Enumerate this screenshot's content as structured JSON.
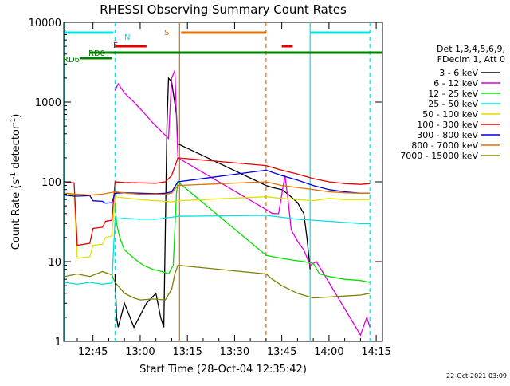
{
  "chart_data": {
    "type": "line",
    "title": "RHESSI Observing Summary Count Rates",
    "xlabel": "Start Time (28-Oct-04 12:35:42)",
    "ylabel_main": "Count Rate (s",
    "ylabel_sup1": "-1",
    "ylabel_mid": " detector",
    "ylabel_sup2": "-1",
    "ylabel_end": ")",
    "footer_date": "22-Oct-2021 03:09",
    "y_scale": "log",
    "ylim": [
      1,
      10000
    ],
    "xlim": [
      "12:35:42",
      "14:17"
    ],
    "x_ticks": [
      "12:45",
      "13:00",
      "13:15",
      "13:30",
      "13:45",
      "14:00",
      "14:15"
    ],
    "y_ticks": [
      "1",
      "10",
      "100",
      "1000",
      "10000"
    ],
    "legend_header": [
      "Det 1,3,4,5,6,9,",
      "FDecim 1, Att 0"
    ],
    "legend_position": "right",
    "series": [
      {
        "name": "3 - 6 keV",
        "color": "#000000",
        "x": [
          "12:52:00",
          "12:52:30",
          "12:53:00",
          "12:55:00",
          "12:58:00",
          "13:02:00",
          "13:05:00",
          "13:06:30",
          "13:07:30",
          "13:08:30",
          "13:09:00",
          "13:10:00",
          "13:11:30",
          "13:12:00",
          "13:40:00",
          "13:42:00",
          "13:45:00",
          "13:47:00",
          "13:50:00",
          "13:52:00",
          "13:53:00",
          "13:54:00"
        ],
        "y": [
          7,
          2,
          1.5,
          3,
          1.5,
          3,
          4,
          2,
          1.5,
          500,
          2000,
          1800,
          700,
          300,
          90,
          85,
          80,
          70,
          55,
          40,
          20,
          8
        ]
      },
      {
        "name": "6 - 12 keV",
        "color": "#e000e0",
        "x": [
          "12:52:00",
          "12:53:00",
          "12:55:00",
          "12:58:00",
          "13:01:00",
          "13:04:00",
          "13:07:00",
          "13:09:00",
          "13:10:00",
          "13:11:00",
          "13:12:00",
          "13:40:00",
          "13:42:00",
          "13:44:00",
          "13:46:00",
          "13:47:00",
          "13:48:00",
          "13:50:00",
          "13:52:00",
          "13:54:00",
          "13:56:00",
          "14:10:00",
          "14:12:00",
          "14:13:00"
        ],
        "y": [
          1400,
          1700,
          1300,
          1000,
          750,
          550,
          420,
          350,
          2000,
          2500,
          200,
          45,
          40,
          40,
          120,
          60,
          25,
          18,
          14,
          9,
          10,
          1.2,
          2,
          1.5
        ]
      },
      {
        "name": "12 - 25 keV",
        "color": "#00e000",
        "x": [
          "12:52:00",
          "12:52:30",
          "12:53:30",
          "12:55:00",
          "12:58:00",
          "13:01:00",
          "13:04:00",
          "13:07:00",
          "13:09:00",
          "13:10:30",
          "13:11:30",
          "13:12:00",
          "13:40:00",
          "13:42:00",
          "13:45:00",
          "13:48:00",
          "13:52:00",
          "13:55:00",
          "13:57:00",
          "14:00:00",
          "14:05:00",
          "14:10:00",
          "14:13:00"
        ],
        "y": [
          55,
          30,
          20,
          14,
          11,
          9,
          8,
          7.5,
          7,
          9,
          70,
          100,
          12,
          11.5,
          11,
          10.5,
          10,
          9.5,
          7,
          6.5,
          6,
          5.8,
          5.5
        ]
      },
      {
        "name": "25 - 50 keV",
        "color": "#00e0e0",
        "x": [
          "12:36:00",
          "12:40:00",
          "12:44:00",
          "12:48:00",
          "12:51:00",
          "12:52:00",
          "12:55:00",
          "13:00:00",
          "13:05:00",
          "13:10:00",
          "13:12:00",
          "13:40:00",
          "13:45:00",
          "13:50:00",
          "13:55:00",
          "14:00:00",
          "14:05:00",
          "14:10:00",
          "14:13:00"
        ],
        "y": [
          5.5,
          5.2,
          5.5,
          5.2,
          5.4,
          34,
          35,
          34,
          34,
          36,
          37,
          38,
          36,
          34,
          33,
          32,
          31,
          30,
          30
        ]
      },
      {
        "name": "50 - 100 keV",
        "color": "#e0e000",
        "x": [
          "12:36:00",
          "12:39:00",
          "12:40:00",
          "12:44:00",
          "12:45:00",
          "12:48:00",
          "12:49:00",
          "12:51:00",
          "12:52:00",
          "12:55:00",
          "13:00:00",
          "13:05:00",
          "13:08:00",
          "13:10:00",
          "13:12:00",
          "13:40:00",
          "13:45:00",
          "13:50:00",
          "13:55:00",
          "14:00:00",
          "14:05:00",
          "14:10:00",
          "14:13:00"
        ],
        "y": [
          70,
          68,
          11,
          11.5,
          16,
          16.5,
          20,
          21,
          65,
          63,
          60,
          58,
          57,
          56,
          58,
          65,
          62,
          60,
          58,
          62,
          60,
          60,
          60
        ]
      },
      {
        "name": "100 - 300 keV",
        "color": "#e00000",
        "x": [
          "12:36:00",
          "12:39:00",
          "12:40:00",
          "12:44:00",
          "12:45:00",
          "12:48:00",
          "12:49:00",
          "12:51:00",
          "12:52:00",
          "12:55:00",
          "13:00:00",
          "13:05:00",
          "13:08:00",
          "13:10:00",
          "13:12:00",
          "13:40:00",
          "13:45:00",
          "13:50:00",
          "13:55:00",
          "14:00:00",
          "14:05:00",
          "14:10:00",
          "14:13:00"
        ],
        "y": [
          100,
          97,
          16,
          17,
          26,
          27,
          32,
          33,
          100,
          98,
          97,
          96,
          100,
          120,
          200,
          160,
          140,
          125,
          110,
          100,
          95,
          93,
          95
        ]
      },
      {
        "name": "300 - 800 keV",
        "color": "#0000e0",
        "x": [
          "12:36:00",
          "12:39:00",
          "12:40:00",
          "12:44:00",
          "12:45:00",
          "12:48:00",
          "12:49:00",
          "12:51:00",
          "12:52:00",
          "12:55:00",
          "13:00:00",
          "13:05:00",
          "13:08:00",
          "13:10:00",
          "13:12:00",
          "13:40:00",
          "13:45:00",
          "13:50:00",
          "13:55:00",
          "14:00:00",
          "14:05:00",
          "14:10:00",
          "14:13:00"
        ],
        "y": [
          68,
          66,
          66,
          67,
          58,
          57,
          54,
          55,
          72,
          73,
          72,
          71,
          72,
          75,
          100,
          140,
          120,
          105,
          90,
          80,
          75,
          72,
          72
        ]
      },
      {
        "name": "800 - 7000 keV",
        "color": "#e07000",
        "x": [
          "12:36:00",
          "12:40:00",
          "12:44:00",
          "12:48:00",
          "12:52:00",
          "12:56:00",
          "13:00:00",
          "13:04:00",
          "13:08:00",
          "13:10:00",
          "13:12:00",
          "13:40:00",
          "13:45:00",
          "13:50:00",
          "13:55:00",
          "14:00:00",
          "14:05:00",
          "14:10:00",
          "14:13:00"
        ],
        "y": [
          72,
          70,
          68,
          70,
          75,
          72,
          70,
          70,
          70,
          72,
          90,
          100,
          90,
          85,
          80,
          75,
          73,
          72,
          72
        ]
      },
      {
        "name": "7000 - 15000 keV",
        "color": "#808000",
        "x": [
          "12:36:00",
          "12:40:00",
          "12:44:00",
          "12:48:00",
          "12:51:00",
          "12:52:00",
          "12:55:00",
          "12:58:00",
          "13:00:00",
          "13:04:00",
          "13:08:00",
          "13:10:00",
          "13:11:00",
          "13:12:00",
          "13:40:00",
          "13:42:00",
          "13:45:00",
          "13:50:00",
          "13:55:00",
          "14:00:00",
          "14:05:00",
          "14:10:00",
          "14:13:00"
        ],
        "y": [
          6.5,
          7,
          6.5,
          7.5,
          6.8,
          5.5,
          4,
          3.5,
          3.3,
          3.4,
          3.3,
          4.5,
          7,
          9,
          7,
          6,
          5,
          4,
          3.5,
          3.6,
          3.7,
          3.8,
          4
        ]
      }
    ],
    "flag_bars": [
      {
        "label": "",
        "color": "#00e0e0",
        "y_level": "top",
        "segments": [
          [
            "12:36:00",
            "12:51:30"
          ],
          [
            "13:54:00",
            "14:13:00"
          ]
        ]
      },
      {
        "label": "N",
        "color": "#00e0e0",
        "y_level": "top",
        "segments": []
      },
      {
        "label": "S",
        "color": "#e07000",
        "y_level": "top",
        "segments": [
          [
            "13:13:00",
            "13:40:00"
          ]
        ]
      },
      {
        "label": "F",
        "color": "#e00000",
        "y_level": "upper",
        "segments": [
          [
            "12:52:00",
            "13:02:00"
          ],
          [
            "13:45:00",
            "13:48:30"
          ]
        ]
      },
      {
        "label": "RD0",
        "color": "#008000",
        "y_level": "middle",
        "segments": [
          [
            "12:44:00",
            "14:17:00"
          ]
        ]
      },
      {
        "label": "RD6",
        "color": "#008000",
        "y_level": "lower",
        "segments": [
          [
            "12:41:00",
            "12:51:00"
          ]
        ]
      }
    ],
    "vertical_markers": [
      {
        "x": "12:36:00",
        "color": "#00e0e0",
        "style": "solid"
      },
      {
        "x": "12:52:00",
        "color": "#00e0e0",
        "style": "dashed"
      },
      {
        "x": "13:12:30",
        "color": "#e07000",
        "style": "solid"
      },
      {
        "x": "13:40:00",
        "color": "#e07000",
        "style": "dashed"
      },
      {
        "x": "13:54:00",
        "color": "#00e0e0",
        "style": "solid"
      },
      {
        "x": "14:13:00",
        "color": "#00e0e0",
        "style": "dashed"
      }
    ]
  }
}
